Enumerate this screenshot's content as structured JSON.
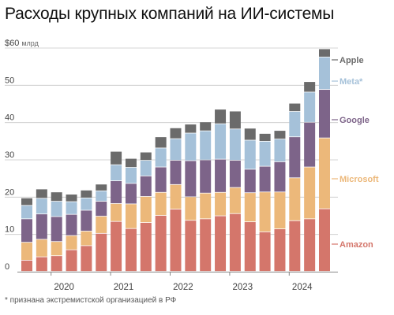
{
  "title": "Расходы крупных компаний на ИИ-системы",
  "footnote": "* признана экстремистской организацией в РФ",
  "colors": {
    "Amazon": "#d4766b",
    "Microsoft": "#ecb87a",
    "Google": "#7d6489",
    "Meta": "#a5c1d9",
    "Apple": "#6b6b6b",
    "grid": "#c9c9c9",
    "axis": "#888888"
  },
  "chart_data": {
    "type": "bar",
    "stacked": true,
    "title": "Расходы крупных компаний на ИИ-системы",
    "ylabel": "",
    "xlabel": "",
    "ylim": [
      0,
      60
    ],
    "yticks": [
      {
        "value": 60,
        "label": "$60",
        "unit": "млрд"
      },
      {
        "value": 50,
        "label": "50",
        "unit": ""
      },
      {
        "value": 40,
        "label": "40",
        "unit": ""
      },
      {
        "value": 30,
        "label": "30",
        "unit": ""
      },
      {
        "value": 20,
        "label": "20",
        "unit": ""
      },
      {
        "value": 10,
        "label": "10",
        "unit": ""
      },
      {
        "value": 0,
        "label": "0",
        "unit": ""
      }
    ],
    "grid": true,
    "legend": "right, aligned to last bar",
    "categories": [
      "2019Q3",
      "2019Q4",
      "2020Q1",
      "2020Q2",
      "2020Q3",
      "2020Q4",
      "2021Q1",
      "2021Q2",
      "2021Q3",
      "2021Q4",
      "2022Q1",
      "2022Q2",
      "2022Q3",
      "2022Q4",
      "2023Q1",
      "2023Q2",
      "2023Q3",
      "2023Q4",
      "2024Q1",
      "2024Q2",
      "2024Q3"
    ],
    "year_labels": [
      {
        "label": "2020",
        "index": 2.5
      },
      {
        "label": "2021",
        "index": 6.5
      },
      {
        "label": "2022",
        "index": 10.5
      },
      {
        "label": "2023",
        "index": 14.5
      },
      {
        "label": "2024",
        "index": 18.5
      }
    ],
    "series": [
      {
        "name": "Amazon",
        "values": [
          3.0,
          3.9,
          4.2,
          5.8,
          6.9,
          10.2,
          13.4,
          11.5,
          13.1,
          15.0,
          16.7,
          13.7,
          14.1,
          14.9,
          15.5,
          13.3,
          10.6,
          11.4,
          13.6,
          14.1,
          16.8
        ]
      },
      {
        "name": "Microsoft",
        "values": [
          4.8,
          4.7,
          3.8,
          3.8,
          3.9,
          4.6,
          4.8,
          6.6,
          7.0,
          6.2,
          6.6,
          6.3,
          6.9,
          6.3,
          7.0,
          7.8,
          10.7,
          9.9,
          11.5,
          13.9,
          19.0
        ]
      },
      {
        "name": "Google",
        "values": [
          6.3,
          6.8,
          6.7,
          5.7,
          5.6,
          4.0,
          6.1,
          5.5,
          5.5,
          6.8,
          6.5,
          9.7,
          8.9,
          8.9,
          7.3,
          6.3,
          6.9,
          8.1,
          11.0,
          12.0,
          13.0
        ]
      },
      {
        "name": "Meta",
        "values": [
          3.6,
          4.2,
          4.1,
          3.4,
          3.3,
          2.8,
          4.3,
          4.3,
          4.2,
          5.1,
          5.8,
          7.4,
          7.8,
          9.5,
          8.4,
          7.8,
          6.7,
          6.1,
          6.8,
          8.1,
          8.7
        ]
      },
      {
        "name": "Apple",
        "values": [
          2.0,
          2.5,
          2.5,
          2.0,
          2.1,
          1.8,
          3.6,
          2.4,
          2.2,
          3.0,
          2.9,
          2.4,
          2.4,
          3.9,
          4.8,
          3.2,
          2.1,
          2.3,
          2.2,
          2.8,
          2.2
        ]
      }
    ],
    "legend_labels": [
      {
        "series": "Apple",
        "text": "Apple"
      },
      {
        "series": "Meta",
        "text": "Meta*"
      },
      {
        "series": "Google",
        "text": "Google"
      },
      {
        "series": "Microsoft",
        "text": "Microsoft"
      },
      {
        "series": "Amazon",
        "text": "Amazon"
      }
    ]
  }
}
